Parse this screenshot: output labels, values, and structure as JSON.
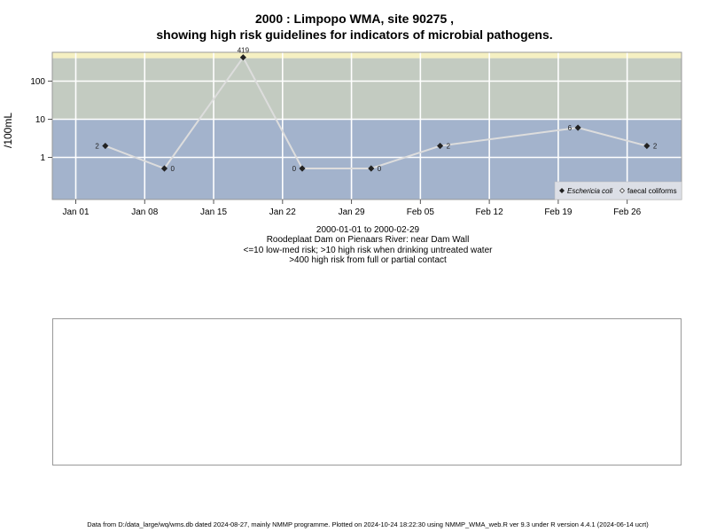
{
  "titles": {
    "line1": "2000 : Limpopo WMA, site 90275 ,",
    "line2": "showing high risk guidelines for indicators of microbial pathogens."
  },
  "info": {
    "period": "2000-01-01 to 2000-02-29",
    "location": "Roodeplaat Dam on Pienaars River: near Dam Wall",
    "risk_line1": "<=10 low-med risk; >10 high risk when drinking untreated water",
    "risk_line2": ">400 high risk from full or partial contact"
  },
  "footer": "Data from D:/data_large/wq/wms.db dated 2024-08-27, mainly NMMP programme. Plotted on 2024-10-24 18:22:30 using NMMP_WMA_web.R ver 9.3 under R version 4.4.1 (2024-06-14 ucrt)",
  "colors": {
    "band_low": "#a3b3cc",
    "band_mid": "#c3cbc1",
    "band_high": "#f5f0c2",
    "series_line": "#dddddd",
    "grid": "#ffffff"
  },
  "chart_data": {
    "type": "line",
    "xlim": [
      "2000-01-01",
      "2000-02-29"
    ],
    "ylabel": "/100mL",
    "y_scale": "log",
    "y_ticks": [
      {
        "value": 1,
        "label": "1"
      },
      {
        "value": 10,
        "label": "10"
      },
      {
        "value": 100,
        "label": "100"
      }
    ],
    "x_ticks": [
      {
        "date": "2000-01-01",
        "label": "Jan 01"
      },
      {
        "date": "2000-01-08",
        "label": "Jan 08"
      },
      {
        "date": "2000-01-15",
        "label": "Jan 15"
      },
      {
        "date": "2000-01-22",
        "label": "Jan 22"
      },
      {
        "date": "2000-01-29",
        "label": "Jan 29"
      },
      {
        "date": "2000-02-05",
        "label": "Feb 05"
      },
      {
        "date": "2000-02-12",
        "label": "Feb 12"
      },
      {
        "date": "2000-02-19",
        "label": "Feb 19"
      },
      {
        "date": "2000-02-26",
        "label": "Feb 26"
      }
    ],
    "risk_bands": [
      {
        "from": 0,
        "to": 10,
        "color": "#a3b3cc"
      },
      {
        "from": 10,
        "to": 400,
        "color": "#c3cbc1"
      },
      {
        "from": 400,
        "to": null,
        "color": "#f5f0c2"
      }
    ],
    "legend_position": "bottom-right",
    "series": [
      {
        "name": "Eschericia coli",
        "marker": "filled-diamond",
        "points": [
          {
            "date": "2000-01-04",
            "value": 2,
            "label": "2",
            "label_side": "left"
          },
          {
            "date": "2000-01-10",
            "value": 0,
            "label": "0",
            "label_side": "right"
          },
          {
            "date": "2000-01-18",
            "value": 419,
            "label": "419",
            "label_side": "top"
          },
          {
            "date": "2000-01-24",
            "value": 0,
            "label": "0",
            "label_side": "left"
          },
          {
            "date": "2000-01-31",
            "value": 0,
            "label": "0",
            "label_side": "right"
          },
          {
            "date": "2000-02-07",
            "value": 2,
            "label": "2",
            "label_side": "right"
          },
          {
            "date": "2000-02-21",
            "value": 6,
            "label": "6",
            "label_side": "left"
          },
          {
            "date": "2000-02-28",
            "value": 2,
            "label": "2",
            "label_side": "right"
          }
        ]
      },
      {
        "name": "faecal coliforms",
        "marker": "open-diamond",
        "points": []
      }
    ]
  }
}
